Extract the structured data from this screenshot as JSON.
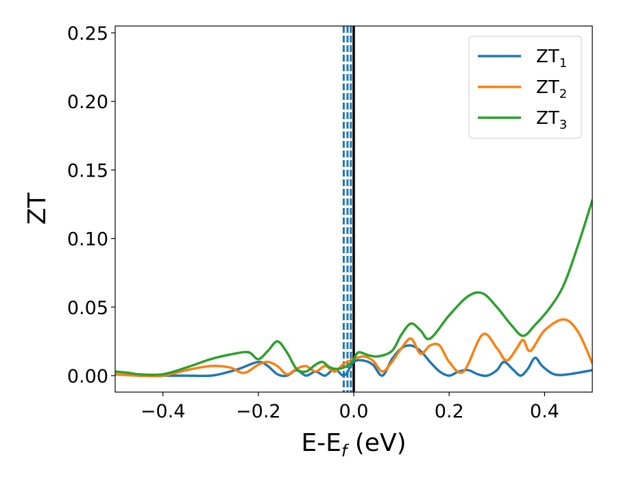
{
  "chart_data": {
    "type": "line",
    "xlabel": "E-E",
    "xlabel_sub": "f",
    "xlabel_unit": " (eV)",
    "ylabel": "ZT",
    "xlim": [
      -0.5,
      0.5
    ],
    "ylim": [
      -0.012,
      0.255
    ],
    "xticks": [
      -0.4,
      -0.2,
      0.0,
      0.2,
      0.4
    ],
    "xtick_labels": [
      "−0.4",
      "−0.2",
      "0.0",
      "0.2",
      "0.4"
    ],
    "yticks": [
      0.0,
      0.05,
      0.1,
      0.15,
      0.2,
      0.25
    ],
    "ytick_labels": [
      "0.00",
      "0.05",
      "0.10",
      "0.15",
      "0.20",
      "0.25"
    ],
    "legend_position": "top-right",
    "vlines": [
      {
        "x": 0.0,
        "style": "solid",
        "color": "#000000"
      },
      {
        "x": -0.006,
        "style": "dashed",
        "color": "#1f77b4"
      },
      {
        "x": -0.013,
        "style": "dashed",
        "color": "#1f77b4"
      },
      {
        "x": -0.021,
        "style": "dashed",
        "color": "#1f77b4"
      }
    ],
    "series": [
      {
        "name": "ZT",
        "sub": "1",
        "color": "#1f77b4",
        "x": [
          -0.5,
          -0.45,
          -0.4,
          -0.35,
          -0.3,
          -0.27,
          -0.24,
          -0.2,
          -0.18,
          -0.16,
          -0.14,
          -0.12,
          -0.1,
          -0.08,
          -0.06,
          -0.04,
          -0.02,
          0.0,
          0.02,
          0.04,
          0.06,
          0.08,
          0.1,
          0.12,
          0.14,
          0.16,
          0.18,
          0.2,
          0.22,
          0.24,
          0.26,
          0.28,
          0.3,
          0.315,
          0.335,
          0.35,
          0.365,
          0.38,
          0.395,
          0.42,
          0.45,
          0.5
        ],
        "y": [
          0.001,
          0.0,
          0.0,
          0.0,
          0.0,
          0.002,
          0.005,
          0.01,
          0.007,
          0.001,
          0.0,
          0.004,
          0.0,
          0.003,
          0.0,
          0.005,
          0.0,
          0.01,
          0.011,
          0.008,
          0.0,
          0.012,
          0.02,
          0.022,
          0.018,
          0.01,
          0.003,
          0.0,
          0.003,
          0.004,
          0.001,
          0.0,
          0.004,
          0.01,
          0.004,
          0.0,
          0.005,
          0.013,
          0.007,
          0.001,
          0.001,
          0.004
        ]
      },
      {
        "name": "ZT",
        "sub": "2",
        "color": "#ff7f0e",
        "x": [
          -0.5,
          -0.45,
          -0.4,
          -0.35,
          -0.3,
          -0.26,
          -0.23,
          -0.2,
          -0.18,
          -0.16,
          -0.14,
          -0.12,
          -0.1,
          -0.08,
          -0.06,
          -0.04,
          -0.02,
          0.0,
          0.02,
          0.04,
          0.06,
          0.08,
          0.1,
          0.12,
          0.14,
          0.16,
          0.18,
          0.2,
          0.23,
          0.27,
          0.3,
          0.32,
          0.34,
          0.355,
          0.37,
          0.4,
          0.44,
          0.47,
          0.5
        ],
        "y": [
          0.001,
          0.0,
          0.0,
          0.004,
          0.007,
          0.006,
          0.002,
          0.008,
          0.01,
          0.007,
          0.001,
          0.005,
          0.007,
          0.003,
          0.007,
          0.003,
          0.009,
          0.012,
          0.014,
          0.011,
          0.003,
          0.01,
          0.02,
          0.027,
          0.016,
          0.022,
          0.022,
          0.01,
          0.003,
          0.03,
          0.02,
          0.011,
          0.019,
          0.026,
          0.018,
          0.033,
          0.041,
          0.032,
          0.009
        ]
      },
      {
        "name": "ZT",
        "sub": "3",
        "color": "#2ca02c",
        "x": [
          -0.5,
          -0.47,
          -0.45,
          -0.4,
          -0.35,
          -0.3,
          -0.25,
          -0.22,
          -0.2,
          -0.18,
          -0.16,
          -0.14,
          -0.12,
          -0.1,
          -0.08,
          -0.065,
          -0.05,
          -0.03,
          -0.01,
          0.0,
          0.01,
          0.03,
          0.05,
          0.08,
          0.1,
          0.12,
          0.14,
          0.16,
          0.2,
          0.24,
          0.27,
          0.3,
          0.33,
          0.355,
          0.38,
          0.41,
          0.44,
          0.47,
          0.5
        ],
        "y": [
          0.003,
          0.002,
          0.001,
          0.001,
          0.006,
          0.012,
          0.016,
          0.017,
          0.012,
          0.018,
          0.025,
          0.017,
          0.005,
          0.003,
          0.008,
          0.01,
          0.006,
          0.005,
          0.008,
          0.012,
          0.017,
          0.015,
          0.014,
          0.018,
          0.03,
          0.038,
          0.033,
          0.027,
          0.044,
          0.058,
          0.06,
          0.05,
          0.037,
          0.029,
          0.037,
          0.049,
          0.066,
          0.095,
          0.128
        ]
      }
    ]
  }
}
